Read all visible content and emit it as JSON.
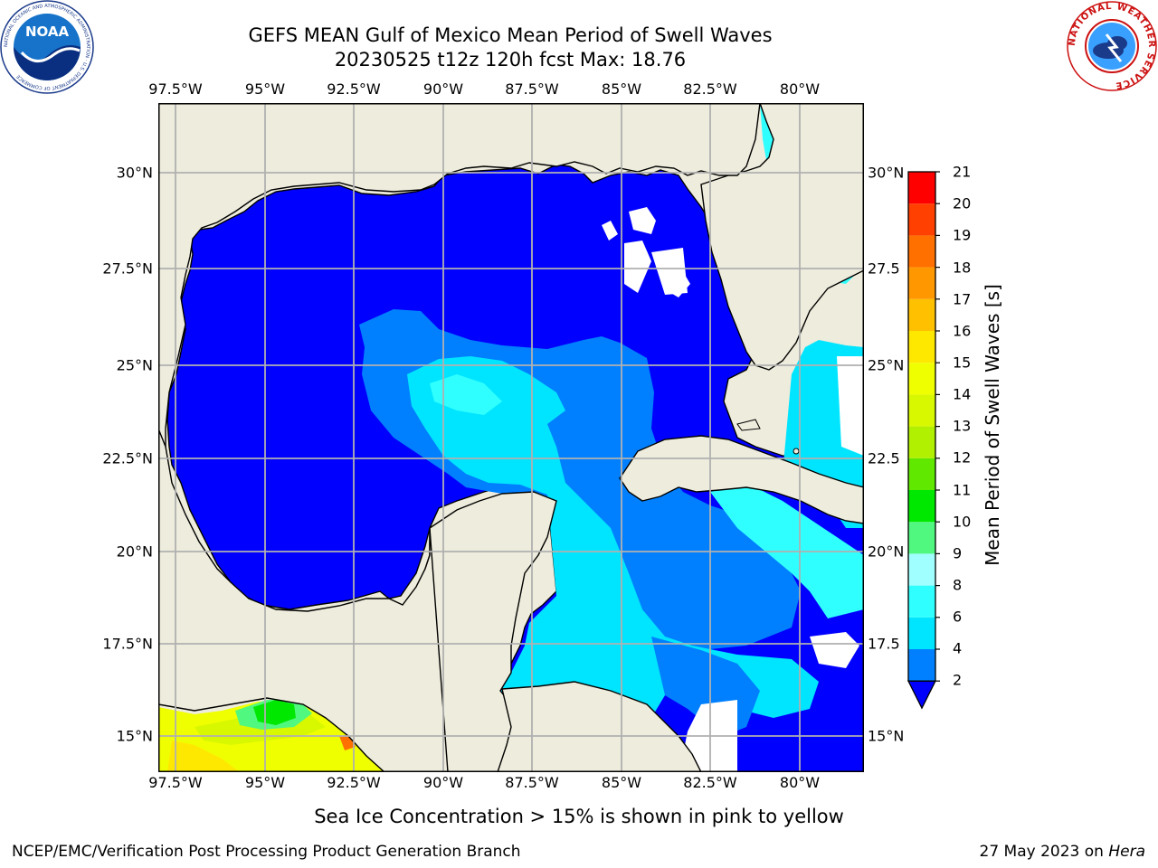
{
  "title": {
    "line1": "GEFS MEAN Gulf of Mexico Mean Period of Swell Waves",
    "line2": "20230525 t12z 120h fcst   Max: 18.76"
  },
  "map": {
    "lon_ticks": [
      "97.5°W",
      "95°W",
      "92.5°W",
      "90°W",
      "87.5°W",
      "85°W",
      "82.5°W",
      "80°W"
    ],
    "lat_ticks": [
      "30°N",
      "27.5°N",
      "25°N",
      "22.5°N",
      "20°N",
      "17.5°N",
      "15°N"
    ],
    "lat_ticks_right": [
      "30°N",
      "27.5",
      "25°N",
      "22.5",
      "20°N",
      "17.5",
      "15°N"
    ],
    "colors": {
      "land": "#eeecdc",
      "grid": "#b0b0b0",
      "coast": "#000000"
    }
  },
  "colorbar": {
    "label": "Mean Period of Swell Waves [s]",
    "ticks": [
      "2",
      "4",
      "6",
      "8",
      "9",
      "10",
      "11",
      "12",
      "13",
      "14",
      "15",
      "16",
      "17",
      "18",
      "19",
      "20",
      "21"
    ],
    "bands": [
      {
        "from": 2,
        "to": 4,
        "color": "#0080ff"
      },
      {
        "from": 4,
        "to": 6,
        "color": "#00e5ff"
      },
      {
        "from": 6,
        "to": 8,
        "color": "#30ffff"
      },
      {
        "from": 8,
        "to": 9,
        "color": "#a0ffff"
      },
      {
        "from": 9,
        "to": 10,
        "color": "#50f880"
      },
      {
        "from": 10,
        "to": 11,
        "color": "#00e800"
      },
      {
        "from": 11,
        "to": 12,
        "color": "#60e800"
      },
      {
        "from": 12,
        "to": 13,
        "color": "#b0f000"
      },
      {
        "from": 13,
        "to": 14,
        "color": "#d8f800"
      },
      {
        "from": 14,
        "to": 15,
        "color": "#f0ff00"
      },
      {
        "from": 15,
        "to": 16,
        "color": "#ffe800"
      },
      {
        "from": 16,
        "to": 17,
        "color": "#ffc000"
      },
      {
        "from": 17,
        "to": 18,
        "color": "#ff9800"
      },
      {
        "from": 18,
        "to": 19,
        "color": "#ff7000"
      },
      {
        "from": 19,
        "to": 20,
        "color": "#ff4000"
      },
      {
        "from": 20,
        "to": 21,
        "color": "#ff0000"
      }
    ],
    "underflow_color": "#0000ff"
  },
  "subtitle": "Sea Ice Concentration > 15% is shown in pink to yellow",
  "footer": {
    "left": "NCEP/EMC/Verification Post Processing Product Generation Branch",
    "right_prefix": "27 May 2023 on ",
    "right_machine": "Hera"
  },
  "logos": {
    "left": {
      "name": "NOAA",
      "ring_text": "NATIONAL OCEANIC AND ATMOSPHERIC ADMINISTRATION · U.S. DEPARTMENT OF COMMERCE"
    },
    "right": {
      "ring_text": "NATIONAL WEATHER SERVICE"
    }
  }
}
